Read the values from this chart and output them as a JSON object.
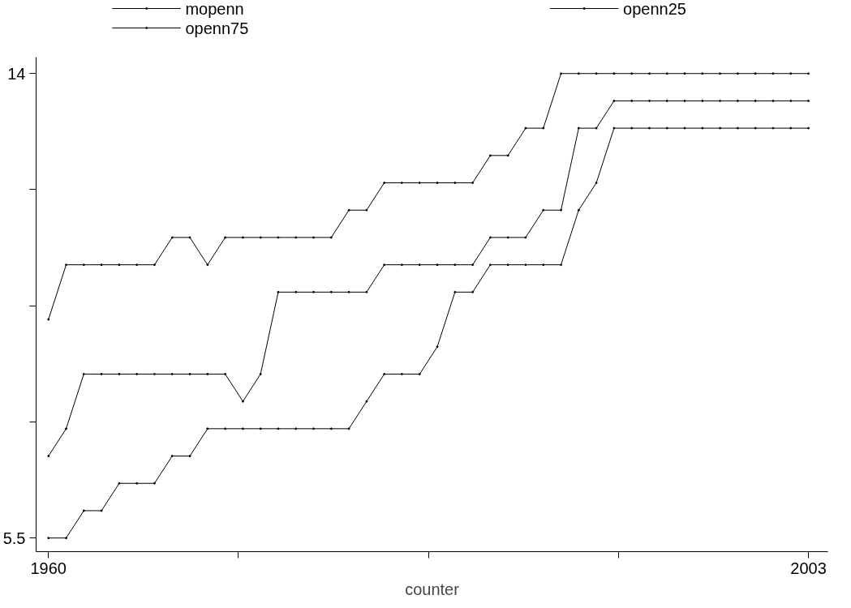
{
  "chart_data": {
    "type": "line",
    "xlabel": "counter",
    "x": [
      1960,
      1961,
      1962,
      1963,
      1964,
      1965,
      1966,
      1967,
      1968,
      1969,
      1970,
      1971,
      1972,
      1973,
      1974,
      1975,
      1976,
      1977,
      1978,
      1979,
      1980,
      1981,
      1982,
      1983,
      1984,
      1985,
      1986,
      1987,
      1988,
      1989,
      1990,
      1991,
      1992,
      1993,
      1994,
      1995,
      1996,
      1997,
      1998,
      1999,
      2000,
      2001,
      2002,
      2003
    ],
    "series": [
      {
        "name": "mopenn",
        "color": "#000000",
        "values": [
          7,
          7.5,
          8.5,
          8.5,
          8.5,
          8.5,
          8.5,
          8.5,
          8.5,
          8.5,
          8.5,
          8,
          8.5,
          10,
          10,
          10,
          10,
          10,
          10,
          10.5,
          10.5,
          10.5,
          10.5,
          10.5,
          10.5,
          11,
          11,
          11,
          11.5,
          11.5,
          13,
          13,
          13.5,
          13.5,
          13.5,
          13.5,
          13.5,
          13.5,
          13.5,
          13.5,
          13.5,
          13.5,
          13.5,
          13.5
        ]
      },
      {
        "name": "openn25",
        "color": "#000000",
        "values": [
          5.5,
          5.5,
          6,
          6,
          6.5,
          6.5,
          6.5,
          7,
          7,
          7.5,
          7.5,
          7.5,
          7.5,
          7.5,
          7.5,
          7.5,
          7.5,
          7.5,
          8,
          8.5,
          8.5,
          8.5,
          9,
          10,
          10,
          10.5,
          10.5,
          10.5,
          10.5,
          10.5,
          11.5,
          12,
          13,
          13,
          13,
          13,
          13,
          13,
          13,
          13,
          13,
          13,
          13,
          13
        ]
      },
      {
        "name": "openn75",
        "color": "#000000",
        "values": [
          9.5,
          10.5,
          10.5,
          10.5,
          10.5,
          10.5,
          10.5,
          11,
          11,
          10.5,
          11,
          11,
          11,
          11,
          11,
          11,
          11,
          11.5,
          11.5,
          12,
          12,
          12,
          12,
          12,
          12,
          12.5,
          12.5,
          13,
          13,
          14,
          14,
          14,
          14,
          14,
          14,
          14,
          14,
          14,
          14,
          14,
          14,
          14,
          14,
          14
        ]
      }
    ],
    "xlim": [
      1959.3,
      2004.1
    ],
    "xticks": [
      1960,
      {
        "value": 1970.75,
        "label": null
      },
      {
        "value": 1981.5,
        "label": null
      },
      {
        "value": 1992.25,
        "label": null
      },
      2003
    ],
    "ylim": [
      5.25,
      14.3
    ],
    "yticks": [
      5.5,
      {
        "value": 7.625,
        "label": null
      },
      {
        "value": 9.75,
        "label": null
      },
      {
        "value": 11.875,
        "label": null
      },
      14
    ],
    "grid": false,
    "legend": "top",
    "marker": "circle",
    "line_style": "solid"
  }
}
